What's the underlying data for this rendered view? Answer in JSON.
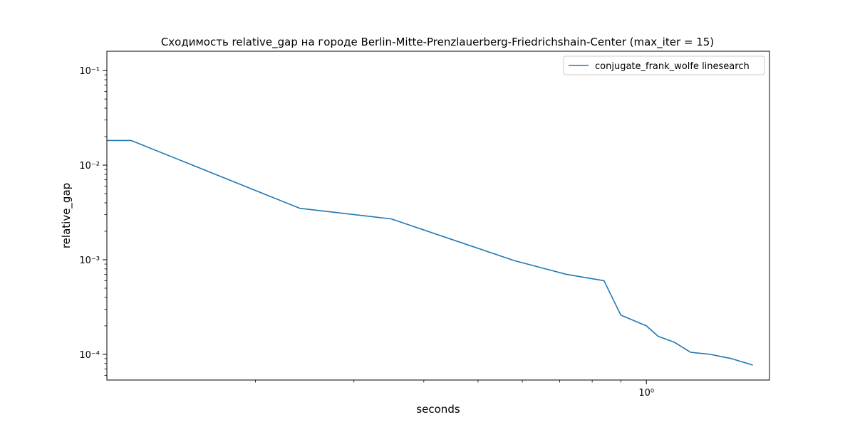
{
  "chart_data": {
    "type": "line",
    "title": "Сходимость relative_gap на городе Berlin-Mitte-Prenzlauerberg-Friedrichshain-Center  (max_iter = 15)",
    "xlabel": "seconds",
    "ylabel": "relative_gap",
    "xscale": "log",
    "yscale": "log",
    "xlim": [
      0.1085,
      1.66
    ],
    "ylim": [
      5.35e-05,
      0.16
    ],
    "grid": false,
    "legend_position": "top-right",
    "x_major_ticks": [
      {
        "value": 1,
        "label": "10⁰"
      }
    ],
    "y_major_ticks": [
      {
        "value": 0.0001,
        "label": "10⁻⁴"
      },
      {
        "value": 0.001,
        "label": "10⁻³"
      },
      {
        "value": 0.01,
        "label": "10⁻²"
      },
      {
        "value": 0.1,
        "label": "10⁻¹"
      }
    ],
    "series": [
      {
        "name": "conjugate_frank_wolfe linesearch",
        "color": "#1f77b4",
        "x": [
          0.1085,
          0.12,
          0.24,
          0.35,
          0.58,
          0.72,
          0.84,
          0.9,
          1.0,
          1.05,
          1.12,
          1.2,
          1.3,
          1.42,
          1.55
        ],
        "y": [
          0.0182,
          0.0182,
          0.0035,
          0.0027,
          0.00098,
          0.0007,
          0.0006,
          0.00026,
          0.0002,
          0.000155,
          0.000135,
          0.000105,
          0.0001,
          9e-05,
          7.7e-05
        ]
      }
    ]
  }
}
